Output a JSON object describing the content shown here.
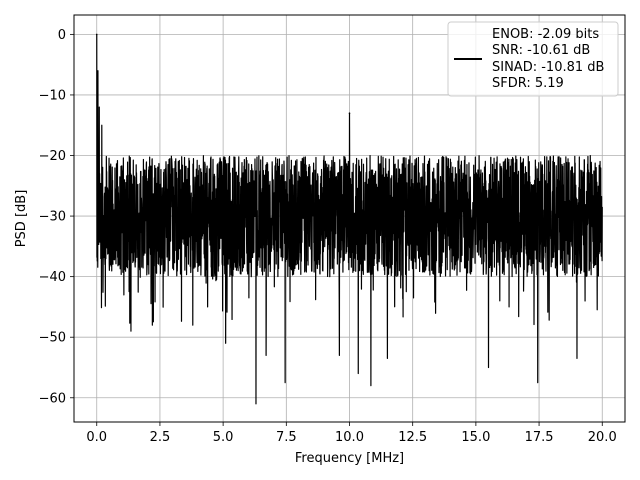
{
  "chart_data": {
    "type": "line",
    "title": "",
    "xlabel": "Frequency [MHz]",
    "ylabel": "PSD [dB]",
    "xlim": [
      -0.9,
      20.9
    ],
    "ylim": [
      -64,
      3.2
    ],
    "x_ticks": [
      0.0,
      2.5,
      5.0,
      7.5,
      10.0,
      12.5,
      15.0,
      17.5,
      20.0
    ],
    "x_tick_labels": [
      "0.0",
      "2.5",
      "5.0",
      "7.5",
      "10.0",
      "12.5",
      "15.0",
      "17.5",
      "20.0"
    ],
    "y_ticks": [
      0,
      -10,
      -20,
      -30,
      -40,
      -50,
      -60
    ],
    "y_tick_labels": [
      "0",
      "−10",
      "−20",
      "−30",
      "−40",
      "−50",
      "−60"
    ],
    "grid": true,
    "legend_position": "top-right",
    "legend_lines": [
      "ENOB: -2.09 bits",
      "SNR: -10.61 dB",
      "SINAD: -10.81 dB",
      "SFDR: 5.19"
    ],
    "series": [
      {
        "color": "#000000",
        "x_range": [
          0,
          20
        ],
        "peak": {
          "x": 0.0,
          "y": 0
        },
        "near_dc": [
          {
            "x": 0.05,
            "y": -6
          },
          {
            "x": 0.1,
            "y": -12
          },
          {
            "x": 0.2,
            "y": -15
          }
        ],
        "spur": {
          "x": 10.0,
          "y": -13
        },
        "noise_top": -20,
        "noise_bottom": -40,
        "noise_center": -30,
        "notable_dips": [
          {
            "x": 1.35,
            "y": -49
          },
          {
            "x": 2.2,
            "y": -48
          },
          {
            "x": 3.8,
            "y": -48
          },
          {
            "x": 5.1,
            "y": -51
          },
          {
            "x": 6.3,
            "y": -61
          },
          {
            "x": 6.7,
            "y": -53
          },
          {
            "x": 7.45,
            "y": -57.5
          },
          {
            "x": 9.6,
            "y": -53
          },
          {
            "x": 10.35,
            "y": -56
          },
          {
            "x": 10.85,
            "y": -58
          },
          {
            "x": 11.5,
            "y": -53.5
          },
          {
            "x": 15.5,
            "y": -55
          },
          {
            "x": 17.45,
            "y": -57.5
          },
          {
            "x": 19.0,
            "y": -53.5
          }
        ]
      }
    ]
  }
}
